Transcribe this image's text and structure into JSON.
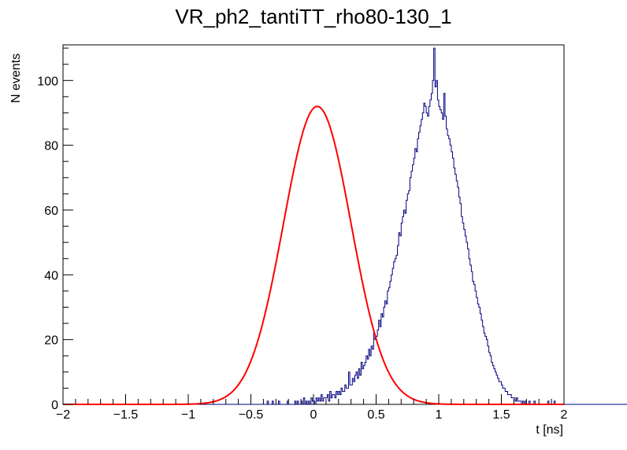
{
  "chart_data": {
    "type": "line",
    "title": "VR_ph2_tantiTT_rho80-130_1",
    "xlabel": "t [ns]",
    "ylabel": "N events",
    "xlim": [
      -2,
      2
    ],
    "ylim": [
      0,
      111
    ],
    "xticks": [
      -2,
      -1.5,
      -1,
      -0.5,
      0,
      0.5,
      1,
      1.5,
      2
    ],
    "xtick_labels": [
      "−2",
      "−1.5",
      "−1",
      "−0.5",
      "0",
      "0.5",
      "1",
      "1.5",
      "2"
    ],
    "yticks": [
      0,
      20,
      40,
      60,
      80,
      100
    ],
    "ytick_labels": [
      "0",
      "20",
      "40",
      "60",
      "80",
      "100"
    ],
    "grid": false,
    "series": [
      {
        "kind": "histogram",
        "color": "#000080",
        "bin_width": 0.01,
        "x_start": -2,
        "values": [
          0,
          0,
          0,
          0,
          0,
          0,
          0,
          0,
          0,
          0,
          0,
          0,
          0,
          0,
          0,
          0,
          0,
          0,
          0,
          0,
          0,
          0,
          0,
          0,
          0,
          0,
          0,
          0,
          0,
          0,
          0,
          0,
          0,
          0,
          0,
          0,
          0,
          0,
          0,
          0,
          0,
          0,
          0,
          0,
          0,
          0,
          0,
          0,
          0,
          0,
          0,
          0,
          0,
          0,
          0,
          0,
          0,
          0,
          0,
          0,
          0,
          0,
          0,
          0,
          0,
          0,
          0,
          0,
          0,
          0,
          0,
          0,
          0,
          0,
          0,
          0,
          0,
          0,
          0,
          0,
          0,
          0,
          0,
          0,
          0,
          0,
          0,
          0,
          0,
          0,
          0,
          0,
          0,
          0,
          0,
          0,
          0,
          0,
          0,
          0,
          0,
          0,
          0,
          0,
          0,
          0,
          0,
          0,
          0,
          0,
          0,
          0,
          0,
          0,
          0,
          0,
          0,
          0,
          0,
          0,
          0,
          0,
          0,
          0,
          0,
          0,
          0,
          0,
          0,
          0,
          0,
          0,
          0,
          0,
          0,
          0,
          0,
          0,
          0,
          0,
          0,
          0,
          0,
          0,
          0,
          0,
          0,
          0,
          0,
          0,
          0,
          0,
          0,
          0,
          0,
          0,
          0,
          0,
          0,
          0,
          0,
          0,
          0,
          1,
          0,
          0,
          0,
          1,
          0,
          0,
          0,
          0,
          1,
          0,
          0,
          0,
          0,
          0,
          0,
          1,
          0,
          0,
          0,
          0,
          0,
          1,
          0,
          1,
          0,
          0,
          1,
          0,
          2,
          0,
          1,
          0,
          1,
          0,
          2,
          1,
          1,
          0,
          2,
          1,
          2,
          1,
          3,
          1,
          2,
          2,
          2,
          3,
          1,
          4,
          2,
          3,
          3,
          2,
          4,
          3,
          4,
          3,
          5,
          4,
          4,
          6,
          5,
          5,
          10,
          6,
          6,
          8,
          7,
          9,
          10,
          8,
          11,
          9,
          13,
          11,
          12,
          13,
          15,
          14,
          17,
          15,
          18,
          17,
          22,
          20,
          21,
          23,
          26,
          24,
          28,
          27,
          30,
          32,
          31,
          35,
          36,
          38,
          40,
          42,
          44,
          45,
          46,
          49,
          53,
          52,
          56,
          58,
          60,
          59,
          63,
          65,
          66,
          70,
          72,
          74,
          76,
          79,
          78,
          82,
          84,
          86,
          88,
          90,
          93,
          92,
          90,
          89,
          92,
          94,
          96,
          100,
          110,
          98,
          100,
          94,
          92,
          91,
          90,
          88,
          96,
          89,
          85,
          83,
          82,
          80,
          78,
          76,
          73,
          71,
          69,
          67,
          64,
          62,
          58,
          56,
          54,
          52,
          50,
          48,
          45,
          43,
          41,
          38,
          37,
          35,
          33,
          31,
          30,
          28,
          26,
          24,
          22,
          21,
          20,
          18,
          16,
          15,
          13,
          12,
          11,
          10,
          9,
          8,
          7,
          7,
          6,
          5,
          5,
          4,
          4,
          3,
          3,
          3,
          2,
          2,
          2,
          1,
          2,
          1,
          1,
          1,
          0,
          1,
          0,
          1,
          0,
          0,
          1,
          0,
          0,
          0,
          1,
          0,
          0,
          0,
          0,
          0,
          0,
          0,
          0,
          0,
          0,
          1,
          0,
          0,
          0,
          0,
          1,
          0,
          0,
          0,
          0,
          0,
          0,
          0,
          0,
          0,
          0,
          0,
          0,
          0,
          0,
          0,
          0,
          0,
          0,
          0,
          0,
          0,
          0,
          0,
          0,
          0,
          0,
          0,
          0,
          0,
          0,
          0,
          0,
          0,
          0,
          0,
          0,
          0,
          0,
          0,
          0,
          0,
          0,
          0,
          0,
          0,
          0,
          0,
          0,
          0,
          0,
          0,
          0,
          0,
          0,
          0,
          0,
          0,
          0,
          0,
          0,
          0,
          0,
          0,
          0,
          0,
          0,
          0,
          0,
          0,
          0,
          0,
          0,
          0,
          0,
          0,
          0,
          0,
          0,
          0,
          0,
          0,
          0,
          0,
          0,
          0,
          0,
          0,
          0,
          0,
          0,
          0,
          0,
          0,
          0,
          0,
          0,
          0,
          0,
          0,
          0,
          0,
          0,
          0,
          0,
          0,
          0,
          0
        ]
      },
      {
        "kind": "gaussian_fit",
        "color": "#ff0000",
        "amplitude": 92,
        "mean": 0.03,
        "sigma": 0.27
      }
    ]
  }
}
